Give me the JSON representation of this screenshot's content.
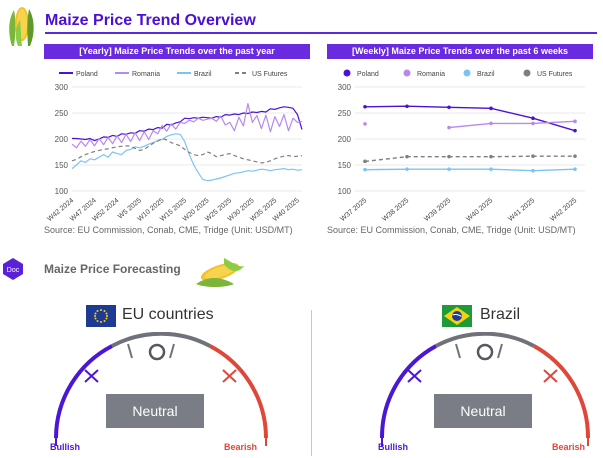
{
  "page": {
    "title": "Maize Price Trend Overview",
    "source_note": "Source: EU Commission, Conab, CME, Tridge (Unit: USD/MT)",
    "forecast_title": "Maize Price Forecasting",
    "doc_badge": "Doc"
  },
  "colors": {
    "Poland": "#4a12d6",
    "Romania": "#b689ee",
    "Brazil": "#7cc4f0",
    "US Futures": "#7f7f7f",
    "accent": "#6a2be0",
    "bullish": "#4b17d6",
    "bearish": "#e0473b"
  },
  "chart_data": [
    {
      "type": "line",
      "title": "[Yearly] Maize Price Trends over the past year",
      "ylim": [
        100,
        300
      ],
      "yticks": [
        100,
        150,
        200,
        250,
        300
      ],
      "xtick_labels": [
        "W42 2024",
        "W47 2024",
        "W52 2024",
        "W5 2025",
        "W10 2025",
        "W15 2025",
        "W20 2025",
        "W25 2025",
        "W30 2025",
        "W35 2025",
        "W40 2025"
      ],
      "x_count": 52,
      "legend": [
        "Poland",
        "Romania",
        "Brazil",
        "US Futures"
      ],
      "grid": true,
      "series": [
        {
          "name": "Poland",
          "values": [
            201,
            201,
            200,
            199,
            201,
            197,
            200,
            204,
            203,
            207,
            205,
            210,
            209,
            212,
            211,
            216,
            215,
            219,
            218,
            222,
            221,
            228,
            227,
            231,
            233,
            240,
            239,
            241,
            240,
            242,
            241,
            240,
            243,
            242,
            247,
            246,
            248,
            247,
            250,
            249,
            252,
            251,
            253,
            252,
            258,
            257,
            260,
            262,
            261,
            259,
            247,
            218
          ]
        },
        {
          "name": "Romania",
          "values": [
            190,
            183,
            196,
            186,
            199,
            187,
            201,
            189,
            203,
            191,
            206,
            193,
            209,
            195,
            212,
            197,
            214,
            199,
            216,
            210,
            226,
            215,
            229,
            219,
            232,
            230,
            236,
            233,
            240,
            236,
            238,
            240,
            234,
            244,
            227,
            232,
            216,
            242,
            225,
            268,
            232,
            245,
            220,
            246,
            214,
            243,
            224,
            247,
            216,
            240,
            232,
            234
          ]
        },
        {
          "name": "Brazil",
          "values": [
            143,
            150,
            158,
            155,
            162,
            160,
            165,
            170,
            165,
            175,
            172,
            170,
            178,
            180,
            185,
            183,
            186,
            190,
            193,
            197,
            199,
            205,
            208,
            210,
            209,
            195,
            170,
            150,
            135,
            122,
            120,
            121,
            123,
            125,
            128,
            131,
            134,
            135,
            137,
            139,
            138,
            140,
            142,
            141,
            139,
            141,
            142,
            143,
            141,
            142,
            140,
            141
          ]
        },
        {
          "name": "US Futures",
          "values": [
            158,
            161,
            166,
            170,
            173,
            176,
            178,
            180,
            181,
            183,
            185,
            186,
            187,
            186,
            182,
            178,
            180,
            186,
            192,
            196,
            201,
            198,
            193,
            190,
            187,
            180,
            174,
            170,
            168,
            170,
            175,
            172,
            166,
            168,
            170,
            172,
            168,
            165,
            162,
            160,
            158,
            156,
            154,
            155,
            158,
            162,
            165,
            167,
            168,
            166,
            167,
            168
          ]
        }
      ]
    },
    {
      "type": "line",
      "title": "[Weekly] Maize Price Trends over the past 6 weeks",
      "ylim": [
        100,
        300
      ],
      "yticks": [
        100,
        150,
        200,
        250,
        300
      ],
      "categories": [
        "W37 2025",
        "W38 2025",
        "W39 2025",
        "W40 2025",
        "W41 2025",
        "W42 2025"
      ],
      "legend": [
        "Poland",
        "Romania",
        "Brazil",
        "US Futures"
      ],
      "grid": true,
      "series": [
        {
          "name": "Poland",
          "values": [
            262,
            263,
            261,
            259,
            240,
            216
          ]
        },
        {
          "name": "Romania",
          "values": [
            229,
            null,
            222,
            230,
            230,
            234
          ]
        },
        {
          "name": "Brazil",
          "values": [
            141,
            142,
            142,
            142,
            139,
            142
          ]
        },
        {
          "name": "US Futures",
          "values": [
            157,
            166,
            166,
            166,
            167,
            167
          ]
        }
      ]
    }
  ],
  "forecast": {
    "regions": [
      {
        "name": "EU countries",
        "verdict": "Neutral",
        "bull_label": "Bullish",
        "bear_label": "Bearish",
        "needle": "neutral"
      },
      {
        "name": "Brazil",
        "verdict": "Neutral",
        "bull_label": "Bullish",
        "bear_label": "Bearish",
        "needle": "neutral"
      }
    ]
  }
}
